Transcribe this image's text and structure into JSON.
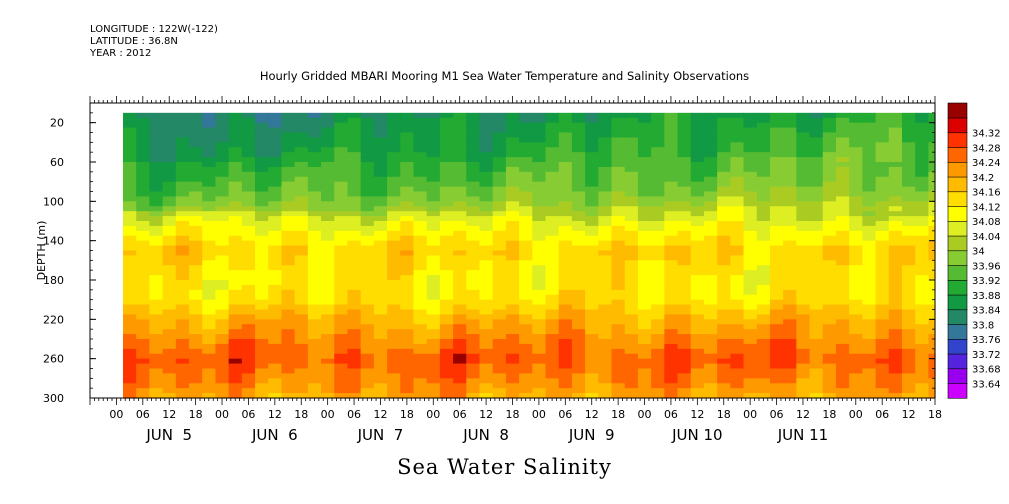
{
  "header": {
    "longitude": "LONGITUDE : 122W(-122)",
    "latitude": "LATITUDE : 36.8N",
    "year": "YEAR : 2012"
  },
  "title": "Hourly Gridded MBARI Mooring M1 Sea Water Temperature and Salinity Observations",
  "bottom_label": "Sea Water Salinity",
  "chart_data": {
    "type": "heatmap",
    "title": "Hourly Gridded MBARI Mooring M1 Sea Water Temperature and Salinity Observations",
    "ylabel": "DEPTH (m)",
    "ylim": [
      300,
      0
    ],
    "yticks": [
      20,
      60,
      100,
      140,
      180,
      220,
      260,
      300
    ],
    "x_hour_ticks": [
      "00",
      "06",
      "12",
      "18",
      "00",
      "06",
      "12",
      "18",
      "00",
      "06",
      "12",
      "18",
      "00",
      "06",
      "12",
      "18",
      "00",
      "06",
      "12",
      "18",
      "00",
      "06",
      "12",
      "18",
      "00",
      "06",
      "12",
      "18",
      "00",
      "06",
      "12",
      "18"
    ],
    "x_day_labels": [
      "JUN  5",
      "JUN  6",
      "JUN  7",
      "JUN  8",
      "JUN  9",
      "JUN 10",
      "JUN 11"
    ],
    "x_range_hours_from_jun4_00": [
      -6,
      186
    ],
    "data_start_hour": 1.5,
    "colorbar": {
      "levels": [
        33.64,
        33.68,
        33.72,
        33.76,
        33.8,
        33.84,
        33.88,
        33.92,
        33.96,
        34,
        34.04,
        34.08,
        34.12,
        34.16,
        34.2,
        34.24,
        34.28,
        34.32
      ],
      "colors": [
        "#cc00ff",
        "#9900ee",
        "#5522dd",
        "#3344cc",
        "#337799",
        "#228866",
        "#119944",
        "#22aa33",
        "#55bb33",
        "#88cc33",
        "#aacc22",
        "#ddee22",
        "#ffff00",
        "#ffdd00",
        "#ffbb00",
        "#ff9900",
        "#ff6600",
        "#ff3300",
        "#dd0000",
        "#990000"
      ]
    },
    "depth_profile": [
      {
        "depth": 10,
        "value": 33.85
      },
      {
        "depth": 20,
        "value": 33.87
      },
      {
        "depth": 40,
        "value": 33.89
      },
      {
        "depth": 60,
        "value": 33.92
      },
      {
        "depth": 80,
        "value": 33.95
      },
      {
        "depth": 100,
        "value": 33.99
      },
      {
        "depth": 120,
        "value": 34.07
      },
      {
        "depth": 150,
        "value": 34.15
      },
      {
        "depth": 180,
        "value": 34.12
      },
      {
        "depth": 200,
        "value": 34.13
      },
      {
        "depth": 220,
        "value": 34.19
      },
      {
        "depth": 240,
        "value": 34.23
      },
      {
        "depth": 260,
        "value": 34.27
      },
      {
        "depth": 280,
        "value": 34.24
      },
      {
        "depth": 300,
        "value": 34.2
      }
    ]
  }
}
